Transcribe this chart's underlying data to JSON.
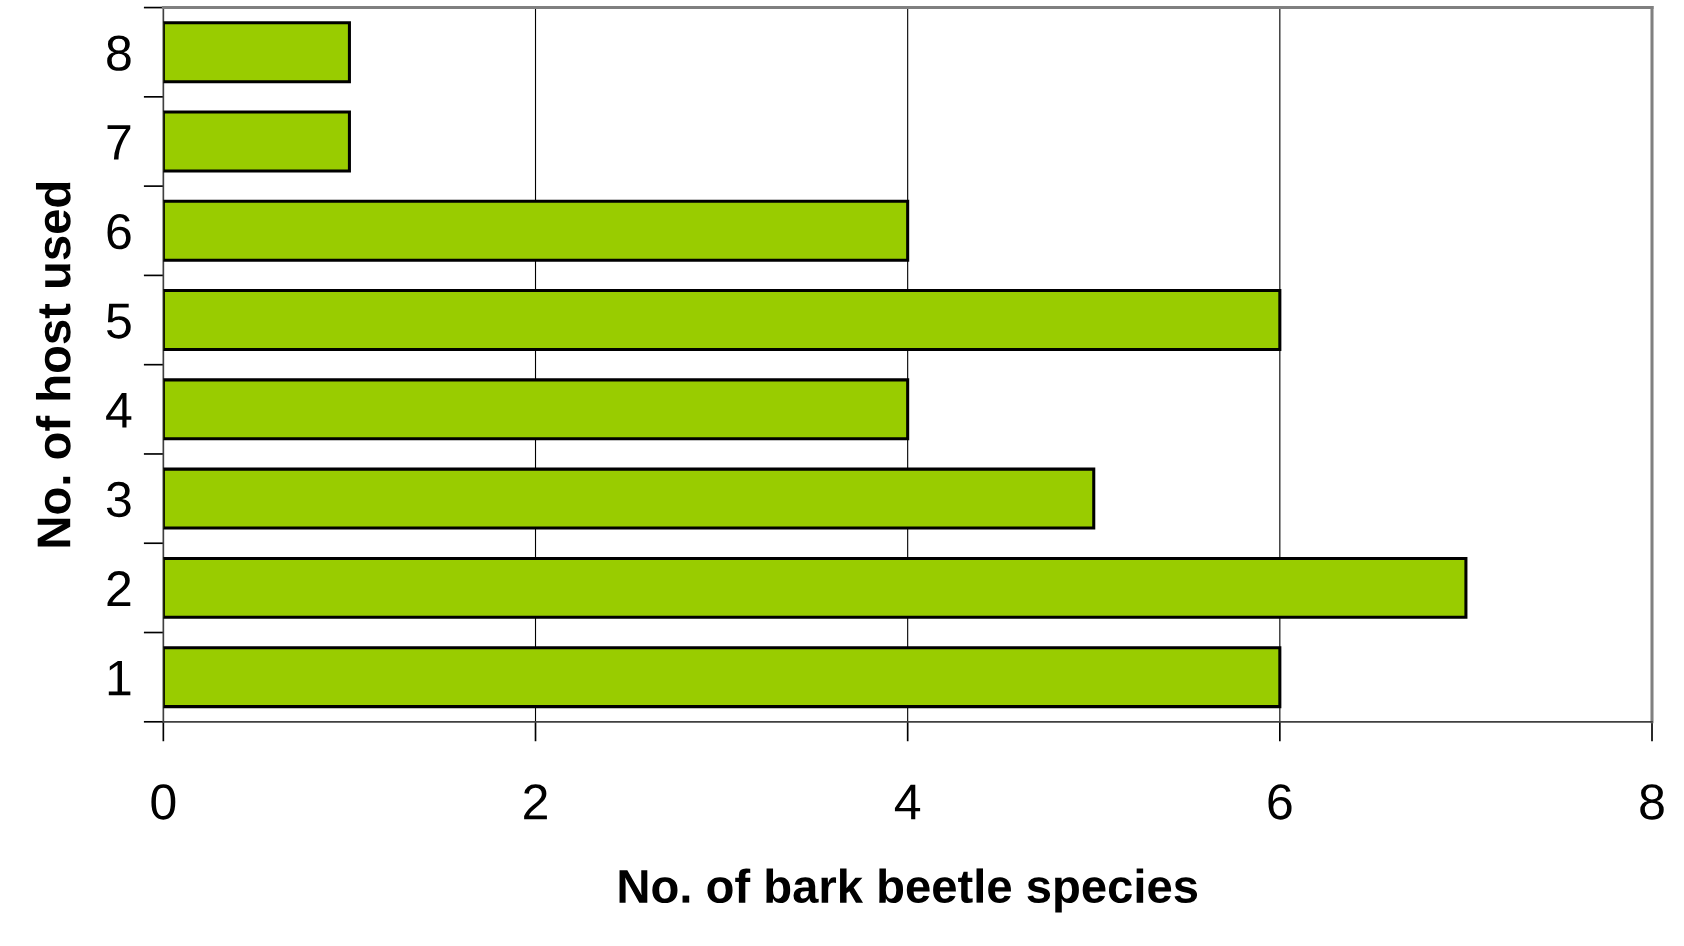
{
  "chart_data": {
    "type": "bar",
    "orientation": "horizontal",
    "xlabel": "No. of bark beetle species",
    "ylabel": "No. of host used",
    "categories": [
      "8",
      "7",
      "6",
      "5",
      "4",
      "3",
      "2",
      "1"
    ],
    "values": [
      1,
      1,
      4,
      6,
      4,
      5,
      7,
      6
    ],
    "color": "#99cc00",
    "xlim": [
      0,
      8
    ],
    "xticks": [
      0,
      2,
      4,
      6,
      8
    ],
    "grid": "x",
    "legend": false
  }
}
